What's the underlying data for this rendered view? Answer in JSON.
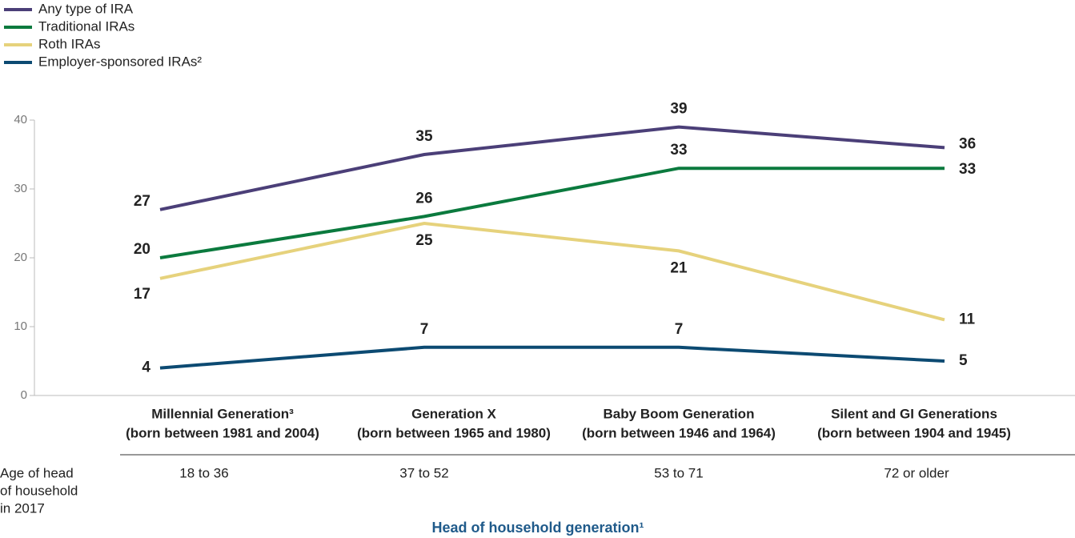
{
  "chart_data": {
    "type": "line",
    "categories": [
      "Millennial Generation³",
      "Generation X",
      "Baby Boom Generation",
      "Silent and GI Generations"
    ],
    "category_sublabels": [
      "(born between 1981 and 2004)",
      "(born between 1965 and 1980)",
      "(born between 1946 and 1964)",
      "(born between 1904 and 1945)"
    ],
    "age_label": [
      "Age of head",
      "of household",
      "in 2017"
    ],
    "ages": [
      "18 to 36",
      "37 to 52",
      "53 to 71",
      "72 or older"
    ],
    "xlabel": "Head of household generation¹",
    "series": [
      {
        "name": "Any type of IRA",
        "color": "#4b3f78",
        "values": [
          27,
          35,
          39,
          36
        ]
      },
      {
        "name": "Traditional IRAs",
        "color": "#0b7a3e",
        "values": [
          20,
          26,
          33,
          33
        ]
      },
      {
        "name": "Roth IRAs",
        "color": "#e6d27c",
        "values": [
          17,
          25,
          21,
          11
        ]
      },
      {
        "name": "Employer-sponsored IRAs²",
        "color": "#0c4a72",
        "values": [
          4,
          7,
          7,
          5
        ]
      }
    ],
    "ylim": [
      0,
      40
    ],
    "yticks": [
      0,
      10,
      20,
      30,
      40
    ],
    "legend": "top-left"
  }
}
